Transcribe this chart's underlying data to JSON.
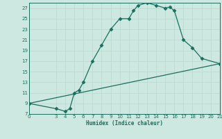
{
  "xlabel": "Humidex (Indice chaleur)",
  "bg_color": "#cce8e0",
  "line_color": "#1a6e5e",
  "grid_color_minor": "#b8d8d0",
  "grid_color_major": "#a8c8c0",
  "line1_x": [
    0,
    3,
    4,
    4.5,
    5,
    5.5,
    6,
    7,
    8,
    9,
    10,
    11,
    11.5,
    12,
    13,
    14,
    15,
    15.5,
    16,
    17,
    18,
    19,
    21
  ],
  "line1_y": [
    9,
    8,
    7.5,
    8.0,
    11,
    11.5,
    13,
    17,
    20,
    23,
    25,
    25,
    26.5,
    27.5,
    28,
    27.5,
    27,
    27.2,
    26.5,
    21,
    19.5,
    17.5,
    16.5
  ],
  "line2_x": [
    0,
    21
  ],
  "line2_y": [
    9,
    16.5
  ],
  "xlim": [
    0,
    21
  ],
  "ylim": [
    7,
    28
  ],
  "xticks": [
    0,
    3,
    4,
    5,
    6,
    7,
    8,
    9,
    10,
    11,
    12,
    13,
    14,
    15,
    16,
    17,
    18,
    19,
    20,
    21
  ],
  "yticks": [
    7,
    9,
    11,
    13,
    15,
    17,
    19,
    21,
    23,
    25,
    27
  ],
  "markersize": 2.5,
  "linewidth": 0.9
}
